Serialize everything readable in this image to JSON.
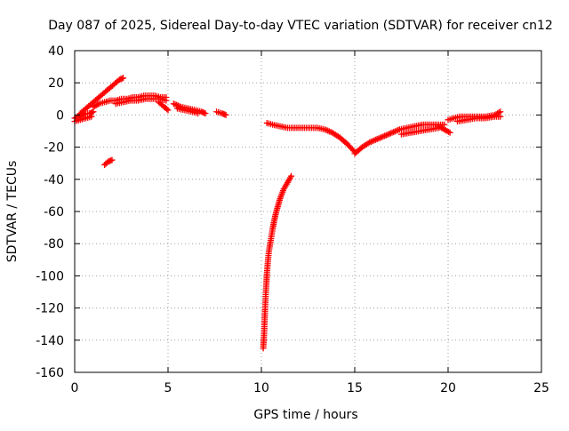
{
  "chart_data": {
    "type": "scatter",
    "title": "Day 087 of 2025, Sidereal Day-to-day VTEC variation (SDTVAR) for receiver cn12",
    "xlabel": "GPS time / hours",
    "ylabel": "SDTVAR / TECUs",
    "xlim": [
      0,
      25
    ],
    "ylim": [
      -160,
      40
    ],
    "xticks": [
      0,
      5,
      10,
      15,
      20,
      25
    ],
    "yticks": [
      40,
      20,
      0,
      -20,
      -40,
      -60,
      -80,
      -100,
      -120,
      -140,
      -160
    ],
    "grid": true,
    "marker": "+",
    "series_color": "#ff0000",
    "series": [
      {
        "name": "SDTVAR",
        "segments": [
          [
            [
              0.0,
              -2
            ],
            [
              0.2,
              -1
            ],
            [
              0.4,
              0
            ],
            [
              0.6,
              1
            ],
            [
              0.8,
              1
            ],
            [
              1.0,
              2
            ]
          ],
          [
            [
              0.0,
              -4
            ],
            [
              0.3,
              -3
            ],
            [
              0.6,
              -2
            ],
            [
              0.9,
              -1
            ]
          ],
          [
            [
              0.3,
              1
            ],
            [
              0.6,
              4
            ],
            [
              0.9,
              7
            ],
            [
              1.2,
              10
            ],
            [
              1.5,
              13
            ],
            [
              1.8,
              16
            ],
            [
              2.1,
              19
            ],
            [
              2.4,
              22
            ],
            [
              2.6,
              23
            ]
          ],
          [
            [
              1.0,
              5
            ],
            [
              1.3,
              7
            ],
            [
              1.6,
              8
            ],
            [
              1.9,
              9
            ],
            [
              2.2,
              9
            ],
            [
              2.5,
              10
            ],
            [
              2.8,
              10
            ],
            [
              3.1,
              11
            ],
            [
              3.4,
              11
            ],
            [
              3.7,
              12
            ],
            [
              4.0,
              12
            ],
            [
              4.3,
              12
            ],
            [
              4.6,
              11
            ],
            [
              4.9,
              11
            ]
          ],
          [
            [
              2.2,
              7
            ],
            [
              2.6,
              8
            ],
            [
              3.0,
              9
            ],
            [
              3.4,
              9
            ],
            [
              3.8,
              10
            ],
            [
              4.2,
              10
            ],
            [
              4.6,
              10
            ],
            [
              4.9,
              9
            ]
          ],
          [
            [
              4.5,
              8
            ],
            [
              4.8,
              5
            ],
            [
              5.0,
              3
            ]
          ],
          [
            [
              1.6,
              -31
            ],
            [
              1.8,
              -29
            ],
            [
              2.0,
              -28
            ]
          ],
          [
            [
              5.3,
              7
            ],
            [
              5.7,
              5
            ],
            [
              6.1,
              4
            ],
            [
              6.5,
              3
            ],
            [
              6.8,
              2
            ],
            [
              7.0,
              1
            ]
          ],
          [
            [
              5.5,
              4
            ],
            [
              5.9,
              3
            ],
            [
              6.3,
              2
            ],
            [
              6.6,
              1
            ]
          ],
          [
            [
              7.6,
              2
            ],
            [
              7.9,
              1
            ],
            [
              8.1,
              0
            ]
          ],
          [
            [
              10.3,
              -5
            ],
            [
              10.6,
              -6
            ],
            [
              11.0,
              -7
            ],
            [
              11.4,
              -8
            ],
            [
              11.8,
              -8
            ],
            [
              12.2,
              -8
            ],
            [
              12.6,
              -8
            ],
            [
              13.0,
              -8
            ],
            [
              13.4,
              -9
            ],
            [
              13.8,
              -11
            ],
            [
              14.2,
              -14
            ],
            [
              14.6,
              -18
            ],
            [
              15.0,
              -23
            ]
          ],
          [
            [
              15.0,
              -24
            ],
            [
              15.4,
              -20
            ],
            [
              15.8,
              -17
            ],
            [
              16.2,
              -15
            ],
            [
              16.6,
              -13
            ],
            [
              17.0,
              -11
            ],
            [
              17.4,
              -9
            ],
            [
              17.8,
              -8
            ],
            [
              18.2,
              -7
            ],
            [
              18.6,
              -6
            ],
            [
              19.0,
              -6
            ],
            [
              19.4,
              -6
            ],
            [
              19.8,
              -6
            ]
          ],
          [
            [
              17.5,
              -12
            ],
            [
              18.0,
              -11
            ],
            [
              18.5,
              -10
            ],
            [
              19.0,
              -9
            ],
            [
              19.5,
              -8
            ]
          ],
          [
            [
              19.5,
              -7
            ],
            [
              19.8,
              -9
            ],
            [
              20.1,
              -11
            ]
          ],
          [
            [
              20.0,
              -3
            ],
            [
              20.3,
              -2
            ],
            [
              20.6,
              -1
            ],
            [
              21.0,
              -1
            ],
            [
              21.5,
              -1
            ],
            [
              22.0,
              -1
            ],
            [
              22.5,
              0
            ],
            [
              22.8,
              2
            ]
          ],
          [
            [
              20.5,
              -4
            ],
            [
              21.0,
              -3
            ],
            [
              21.5,
              -2
            ],
            [
              22.0,
              -2
            ],
            [
              22.5,
              -1
            ],
            [
              22.8,
              -1
            ]
          ],
          [
            [
              10.1,
              -145
            ],
            [
              10.15,
              -135
            ],
            [
              10.2,
              -120
            ],
            [
              10.25,
              -108
            ],
            [
              10.3,
              -98
            ],
            [
              10.35,
              -91
            ],
            [
              10.4,
              -85
            ],
            [
              10.5,
              -78
            ],
            [
              10.6,
              -71
            ],
            [
              10.7,
              -65
            ],
            [
              10.8,
              -60
            ],
            [
              10.9,
              -56
            ],
            [
              11.0,
              -52
            ],
            [
              11.1,
              -49
            ],
            [
              11.2,
              -46
            ],
            [
              11.3,
              -44
            ],
            [
              11.4,
              -42
            ],
            [
              11.5,
              -40
            ],
            [
              11.6,
              -38
            ]
          ]
        ]
      }
    ]
  }
}
